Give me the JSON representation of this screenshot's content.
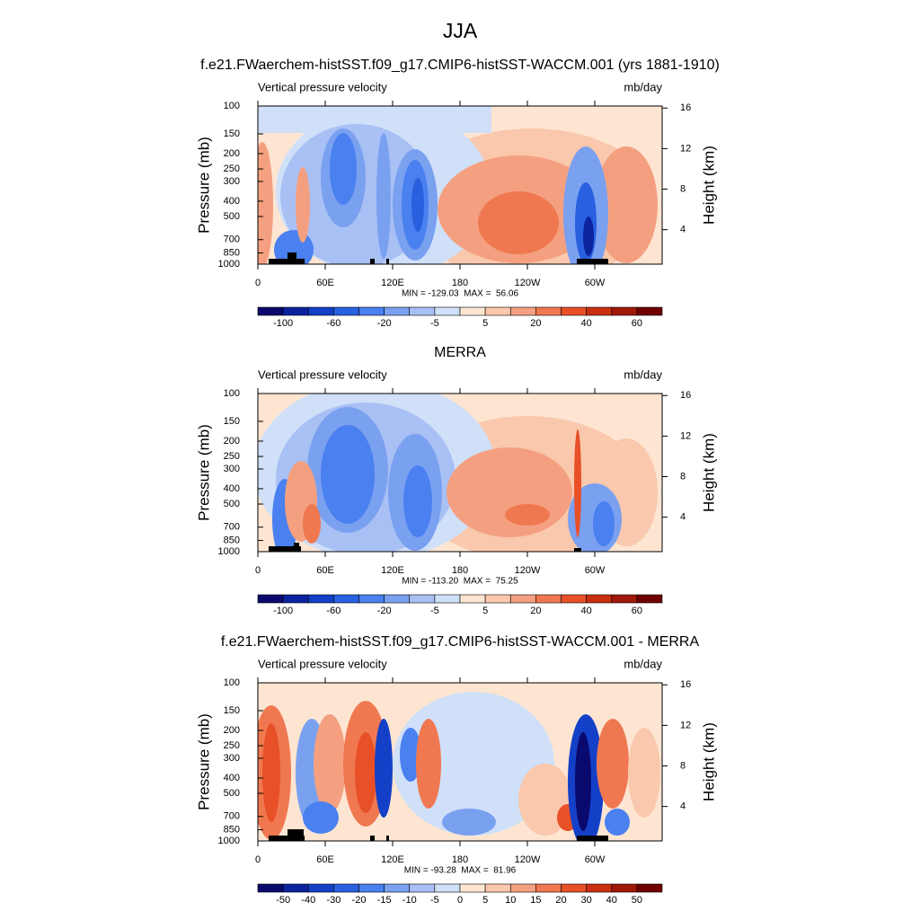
{
  "title": "JJA",
  "colorbar_colors": [
    "#0a0a6e",
    "#0c23a0",
    "#1440c8",
    "#2860e0",
    "#4a80f0",
    "#7aa0f0",
    "#a8c0f4",
    "#d0e0f8",
    "#fde5d2",
    "#fac8ac",
    "#f4a080",
    "#f07850",
    "#e85028",
    "#c83010",
    "#a01808",
    "#700000"
  ],
  "chart_data": [
    {
      "type": "contour",
      "title": "f.e21.FWaerchem-histSST.f09_g17.CMIP6-histSST-WACCM.001 (yrs 1881-1910)",
      "left_label": "Vertical pressure velocity",
      "right_label": "mb/day",
      "ylabel": "Pressure (mb)",
      "y2label": "Height (km)",
      "log_y": true,
      "xlim": [
        0,
        360
      ],
      "xticks": [
        0,
        {
          "value": 60,
          "label": "60E"
        },
        {
          "value": 120,
          "label": "120E"
        },
        180,
        {
          "value": 240,
          "label": "120W"
        },
        {
          "value": 300,
          "label": "60W"
        }
      ],
      "ylim": [
        1000,
        100
      ],
      "yticks": [
        100,
        150,
        200,
        250,
        300,
        400,
        500,
        700,
        850,
        1000
      ],
      "y2lim": [
        0.6,
        16.2
      ],
      "y2ticks": [
        4,
        8,
        12,
        16
      ],
      "stats": "MIN = -129.03  MAX =  56.06",
      "colorbar_labels": [
        -100,
        -60,
        -20,
        -5,
        5,
        20,
        40,
        60
      ]
    },
    {
      "type": "contour",
      "title": "MERRA",
      "left_label": "Vertical pressure velocity",
      "right_label": "mb/day",
      "ylabel": "Pressure (mb)",
      "y2label": "Height (km)",
      "log_y": true,
      "xlim": [
        0,
        360
      ],
      "xticks": [
        0,
        {
          "value": 60,
          "label": "60E"
        },
        {
          "value": 120,
          "label": "120E"
        },
        180,
        {
          "value": 240,
          "label": "120W"
        },
        {
          "value": 300,
          "label": "60W"
        }
      ],
      "ylim": [
        1000,
        100
      ],
      "yticks": [
        100,
        150,
        200,
        250,
        300,
        400,
        500,
        700,
        850,
        1000
      ],
      "y2lim": [
        0.6,
        16.2
      ],
      "y2ticks": [
        4,
        8,
        12,
        16
      ],
      "stats": "MIN = -113.20  MAX =  75.25",
      "colorbar_labels": [
        -100,
        -60,
        -20,
        -5,
        5,
        20,
        40,
        60
      ]
    },
    {
      "type": "contour",
      "title": "f.e21.FWaerchem-histSST.f09_g17.CMIP6-histSST-WACCM.001 - MERRA",
      "left_label": "Vertical pressure velocity",
      "right_label": "mb/day",
      "ylabel": "Pressure (mb)",
      "y2label": "Height (km)",
      "log_y": true,
      "xlim": [
        0,
        360
      ],
      "xticks": [
        0,
        {
          "value": 60,
          "label": "60E"
        },
        {
          "value": 120,
          "label": "120E"
        },
        180,
        {
          "value": 240,
          "label": "120W"
        },
        {
          "value": 300,
          "label": "60W"
        }
      ],
      "ylim": [
        1000,
        100
      ],
      "yticks": [
        100,
        150,
        200,
        250,
        300,
        400,
        500,
        700,
        850,
        1000
      ],
      "y2lim": [
        0.6,
        16.2
      ],
      "y2ticks": [
        4,
        8,
        12,
        16
      ],
      "stats": "MIN = -93.28  MAX =  81.96",
      "colorbar_labels": [
        -50,
        -40,
        -30,
        -20,
        -15,
        -10,
        -5,
        0,
        5,
        10,
        15,
        20,
        30,
        40,
        50
      ]
    }
  ]
}
